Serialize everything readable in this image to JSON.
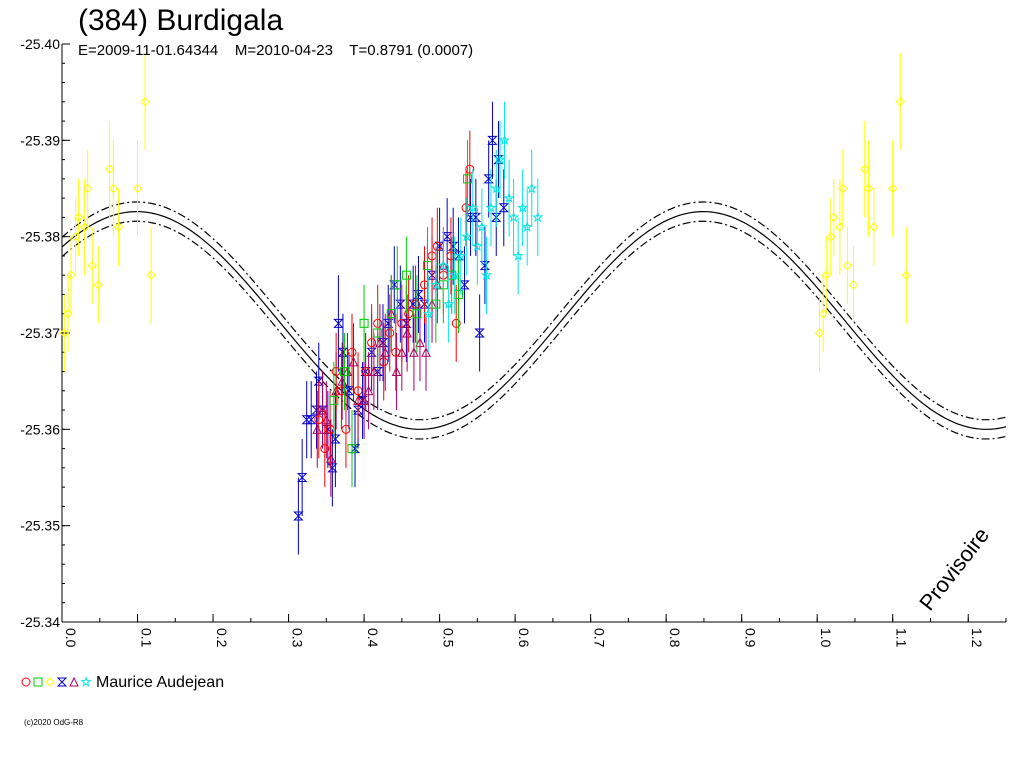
{
  "header": {
    "title": "(384) Burdigala",
    "subtitle": "E=2009-11-01.64344    M=2010-04-23    T=0.8791 (0.0007)"
  },
  "stamp": "Provisoire",
  "legend": {
    "observer": "Maurice Audejean",
    "symbols": [
      {
        "shape": "circle",
        "color": "#ff0000"
      },
      {
        "shape": "square",
        "color": "#00cc00"
      },
      {
        "shape": "diamond",
        "color": "#ffff00"
      },
      {
        "shape": "hourglass",
        "color": "#0000cc"
      },
      {
        "shape": "triangle",
        "color": "#aa0066"
      },
      {
        "shape": "star",
        "color": "#00e5e5"
      }
    ]
  },
  "copyright": "(c)2020 OdG-R8",
  "chart_data": {
    "type": "scatter",
    "title": "(384) Burdigala",
    "xlim": [
      0.0,
      1.25
    ],
    "ylim": [
      -25.34,
      -25.4
    ],
    "x_ticks": [
      "0.0",
      "0.1",
      "0.2",
      "0.3",
      "0.4",
      "0.5",
      "0.6",
      "0.7",
      "0.8",
      "0.9",
      "1.0",
      "1.1",
      "1.2"
    ],
    "y_ticks": [
      "-25.40",
      "-25.39",
      "-25.38",
      "-25.37",
      "-25.36",
      "-25.35",
      "-25.34"
    ],
    "y_inverted": true,
    "grid": false,
    "fit_curve": {
      "style": "solid with dash-dot envelope",
      "mean": -25.3713,
      "amplitude": 0.0113,
      "phase_of_max": 0.099,
      "period_in_phase": 0.75,
      "envelope": 0.001
    },
    "series": [
      {
        "name": "",
        "marker": "diamond",
        "color": "#ffff00",
        "points": [
          [
            0.003,
            -25.37,
            0.004
          ],
          [
            0.008,
            -25.372,
            0.004
          ],
          [
            0.012,
            -25.376,
            0.004
          ],
          [
            0.018,
            -25.38,
            0.004
          ],
          [
            0.022,
            -25.382,
            0.004
          ],
          [
            0.03,
            -25.381,
            0.005
          ],
          [
            0.034,
            -25.385,
            0.004
          ],
          [
            0.04,
            -25.377,
            0.004
          ],
          [
            0.048,
            -25.375,
            0.004
          ],
          [
            0.063,
            -25.387,
            0.005
          ],
          [
            0.068,
            -25.385,
            0.005
          ],
          [
            0.075,
            -25.381,
            0.004
          ],
          [
            0.1,
            -25.385,
            0.005
          ],
          [
            0.11,
            -25.394,
            0.005
          ],
          [
            0.118,
            -25.376,
            0.005
          ],
          [
            1.003,
            -25.37,
            0.004
          ],
          [
            1.008,
            -25.372,
            0.004
          ],
          [
            1.012,
            -25.376,
            0.004
          ],
          [
            1.018,
            -25.38,
            0.004
          ],
          [
            1.022,
            -25.382,
            0.004
          ],
          [
            1.03,
            -25.381,
            0.005
          ],
          [
            1.034,
            -25.385,
            0.004
          ],
          [
            1.04,
            -25.377,
            0.004
          ],
          [
            1.048,
            -25.375,
            0.004
          ],
          [
            1.063,
            -25.387,
            0.005
          ],
          [
            1.068,
            -25.385,
            0.005
          ],
          [
            1.075,
            -25.381,
            0.004
          ],
          [
            1.1,
            -25.385,
            0.005
          ],
          [
            1.11,
            -25.394,
            0.005
          ],
          [
            1.118,
            -25.376,
            0.005
          ]
        ]
      },
      {
        "name": "",
        "marker": "hourglass",
        "color": "#0000cc",
        "points": [
          [
            0.313,
            -25.351,
            0.004
          ],
          [
            0.318,
            -25.355,
            0.004
          ],
          [
            0.324,
            -25.361,
            0.004
          ],
          [
            0.33,
            -25.361,
            0.004
          ],
          [
            0.337,
            -25.362,
            0.004
          ],
          [
            0.34,
            -25.365,
            0.004
          ],
          [
            0.345,
            -25.362,
            0.004
          ],
          [
            0.352,
            -25.36,
            0.004
          ],
          [
            0.358,
            -25.356,
            0.004
          ],
          [
            0.362,
            -25.359,
            0.005
          ],
          [
            0.366,
            -25.371,
            0.005
          ],
          [
            0.372,
            -25.368,
            0.004
          ],
          [
            0.38,
            -25.364,
            0.004
          ],
          [
            0.388,
            -25.358,
            0.004
          ],
          [
            0.392,
            -25.362,
            0.004
          ],
          [
            0.398,
            -25.363,
            0.004
          ],
          [
            0.402,
            -25.366,
            0.004
          ],
          [
            0.41,
            -25.368,
            0.004
          ],
          [
            0.418,
            -25.366,
            0.004
          ],
          [
            0.425,
            -25.369,
            0.004
          ],
          [
            0.432,
            -25.371,
            0.004
          ],
          [
            0.44,
            -25.375,
            0.004
          ],
          [
            0.448,
            -25.373,
            0.004
          ],
          [
            0.456,
            -25.371,
            0.004
          ],
          [
            0.465,
            -25.373,
            0.004
          ],
          [
            0.472,
            -25.374,
            0.004
          ],
          [
            0.48,
            -25.373,
            0.004
          ],
          [
            0.49,
            -25.376,
            0.004
          ],
          [
            0.5,
            -25.379,
            0.004
          ],
          [
            0.51,
            -25.38,
            0.004
          ],
          [
            0.518,
            -25.379,
            0.004
          ],
          [
            0.525,
            -25.378,
            0.004
          ],
          [
            0.533,
            -25.375,
            0.004
          ],
          [
            0.541,
            -25.382,
            0.004
          ],
          [
            0.548,
            -25.382,
            0.004
          ],
          [
            0.553,
            -25.37,
            0.004
          ],
          [
            0.56,
            -25.377,
            0.004
          ],
          [
            0.565,
            -25.386,
            0.004
          ],
          [
            0.57,
            -25.39,
            0.004
          ],
          [
            0.575,
            -25.382,
            0.004
          ],
          [
            0.578,
            -25.388,
            0.004
          ],
          [
            0.585,
            -25.383,
            0.004
          ]
        ]
      },
      {
        "name": "",
        "marker": "triangle",
        "color": "#aa0066",
        "points": [
          [
            0.338,
            -25.36,
            0.004
          ],
          [
            0.345,
            -25.362,
            0.004
          ],
          [
            0.35,
            -25.361,
            0.004
          ],
          [
            0.356,
            -25.357,
            0.004
          ],
          [
            0.363,
            -25.364,
            0.004
          ],
          [
            0.371,
            -25.365,
            0.004
          ],
          [
            0.378,
            -25.366,
            0.004
          ],
          [
            0.386,
            -25.367,
            0.004
          ],
          [
            0.392,
            -25.363,
            0.004
          ],
          [
            0.4,
            -25.363,
            0.004
          ],
          [
            0.406,
            -25.364,
            0.004
          ],
          [
            0.413,
            -25.366,
            0.004
          ],
          [
            0.421,
            -25.369,
            0.004
          ],
          [
            0.428,
            -25.368,
            0.004
          ],
          [
            0.436,
            -25.372,
            0.004
          ],
          [
            0.443,
            -25.366,
            0.004
          ],
          [
            0.45,
            -25.368,
            0.004
          ],
          [
            0.457,
            -25.37,
            0.004
          ],
          [
            0.466,
            -25.368,
            0.004
          ],
          [
            0.474,
            -25.369,
            0.004
          ],
          [
            0.482,
            -25.368,
            0.004
          ],
          [
            0.49,
            -25.373,
            0.004
          ],
          [
            0.497,
            -25.375,
            0.004
          ],
          [
            0.505,
            -25.377,
            0.004
          ]
        ]
      },
      {
        "name": "",
        "marker": "circle",
        "color": "#ff0000",
        "points": [
          [
            0.34,
            -25.361,
            0.004
          ],
          [
            0.348,
            -25.358,
            0.004
          ],
          [
            0.355,
            -25.36,
            0.004
          ],
          [
            0.363,
            -25.366,
            0.004
          ],
          [
            0.37,
            -25.364,
            0.004
          ],
          [
            0.376,
            -25.36,
            0.004
          ],
          [
            0.384,
            -25.368,
            0.004
          ],
          [
            0.392,
            -25.364,
            0.004
          ],
          [
            0.402,
            -25.366,
            0.004
          ],
          [
            0.41,
            -25.369,
            0.004
          ],
          [
            0.418,
            -25.371,
            0.004
          ],
          [
            0.426,
            -25.367,
            0.004
          ],
          [
            0.434,
            -25.37,
            0.004
          ],
          [
            0.442,
            -25.368,
            0.004
          ],
          [
            0.45,
            -25.371,
            0.004
          ],
          [
            0.459,
            -25.372,
            0.004
          ],
          [
            0.468,
            -25.373,
            0.004
          ],
          [
            0.48,
            -25.375,
            0.004
          ],
          [
            0.49,
            -25.378,
            0.004
          ],
          [
            0.497,
            -25.379,
            0.004
          ],
          [
            0.505,
            -25.376,
            0.004
          ],
          [
            0.515,
            -25.378,
            0.004
          ],
          [
            0.522,
            -25.371,
            0.004
          ],
          [
            0.535,
            -25.383,
            0.004
          ],
          [
            0.54,
            -25.387,
            0.004
          ]
        ]
      },
      {
        "name": "",
        "marker": "square",
        "color": "#00cc00",
        "points": [
          [
            0.36,
            -25.363,
            0.004
          ],
          [
            0.374,
            -25.366,
            0.004
          ],
          [
            0.384,
            -25.358,
            0.004
          ],
          [
            0.4,
            -25.371,
            0.004
          ],
          [
            0.418,
            -25.37,
            0.004
          ],
          [
            0.436,
            -25.372,
            0.004
          ],
          [
            0.444,
            -25.375,
            0.004
          ],
          [
            0.456,
            -25.376,
            0.004
          ],
          [
            0.47,
            -25.372,
            0.004
          ],
          [
            0.484,
            -25.377,
            0.004
          ],
          [
            0.495,
            -25.373,
            0.004
          ],
          [
            0.505,
            -25.375,
            0.004
          ],
          [
            0.516,
            -25.376,
            0.004
          ],
          [
            0.525,
            -25.374,
            0.004
          ],
          [
            0.537,
            -25.386,
            0.004
          ]
        ]
      },
      {
        "name": "",
        "marker": "star",
        "color": "#00e5e5",
        "points": [
          [
            0.485,
            -25.372,
            0.004
          ],
          [
            0.495,
            -25.375,
            0.004
          ],
          [
            0.505,
            -25.377,
            0.004
          ],
          [
            0.512,
            -25.373,
            0.004
          ],
          [
            0.52,
            -25.376,
            0.004
          ],
          [
            0.528,
            -25.378,
            0.004
          ],
          [
            0.536,
            -25.38,
            0.004
          ],
          [
            0.544,
            -25.383,
            0.004
          ],
          [
            0.55,
            -25.379,
            0.004
          ],
          [
            0.556,
            -25.381,
            0.004
          ],
          [
            0.562,
            -25.376,
            0.004
          ],
          [
            0.568,
            -25.383,
            0.004
          ],
          [
            0.575,
            -25.385,
            0.004
          ],
          [
            0.58,
            -25.388,
            0.004
          ],
          [
            0.586,
            -25.39,
            0.004
          ],
          [
            0.592,
            -25.384,
            0.004
          ],
          [
            0.598,
            -25.382,
            0.004
          ],
          [
            0.604,
            -25.378,
            0.004
          ],
          [
            0.61,
            -25.383,
            0.004
          ],
          [
            0.616,
            -25.381,
            0.004
          ],
          [
            0.622,
            -25.385,
            0.004
          ],
          [
            0.63,
            -25.382,
            0.004
          ]
        ]
      }
    ]
  }
}
